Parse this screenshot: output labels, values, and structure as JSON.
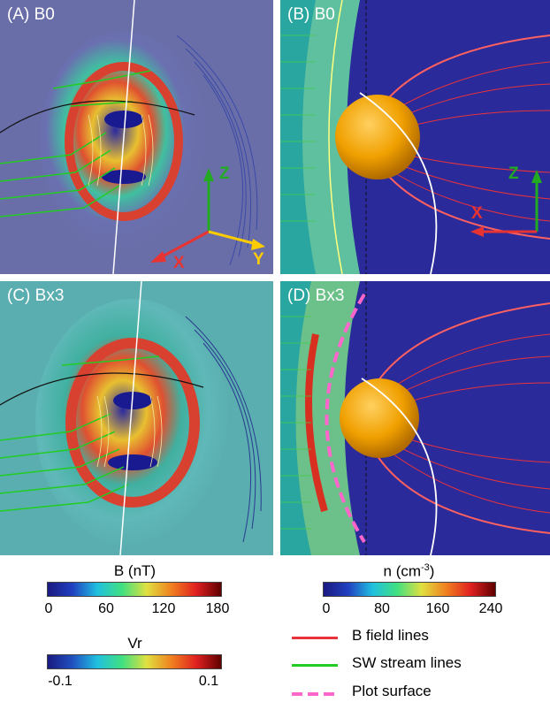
{
  "panels": {
    "a": {
      "label": "(A) B0"
    },
    "b": {
      "label": "(B) B0"
    },
    "c": {
      "label": "(C) Bx3"
    },
    "d": {
      "label": "(D) Bx3"
    }
  },
  "axes_a": {
    "z": "Z",
    "x": "X",
    "y": "Y"
  },
  "axes_b": {
    "z": "Z",
    "x": "X"
  },
  "colorbar_b": {
    "title": "B (nT)",
    "ticks": [
      "0",
      "60",
      "120",
      "180"
    ]
  },
  "colorbar_n": {
    "title": "n (cm",
    "title_sup": "-3",
    "title_end": ")",
    "ticks": [
      "0",
      "80",
      "160",
      "240"
    ]
  },
  "colorbar_vr": {
    "title": "Vr",
    "ticks": [
      "-0.1",
      "0.1"
    ]
  },
  "legend": {
    "b_field": "B field lines",
    "sw_stream": "SW stream lines",
    "plot_surface": "Plot surface"
  },
  "colors": {
    "b_field": "#e8333b",
    "sw_stream": "#22cc22",
    "plot_surface": "#ff66cc",
    "axis_z": "#22aa22",
    "axis_x": "#e83333",
    "axis_y": "#ffcc00",
    "planet": "#f0a000"
  }
}
